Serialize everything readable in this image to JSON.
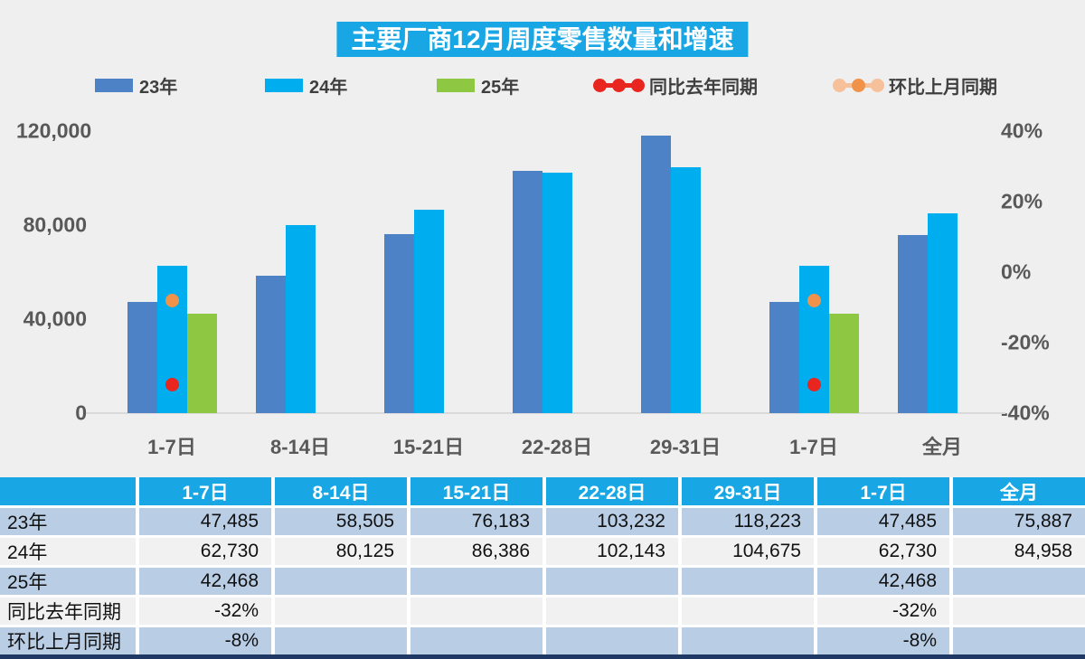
{
  "title": "主要厂商12月周度零售数量和增速",
  "colors": {
    "header_blue": "#18A7E4",
    "bar_23": "#4E82C6",
    "bar_24": "#00AEEF",
    "bar_25": "#8EC842",
    "yoy_red": "#E8251F",
    "mom_orange": "#F0924A",
    "mom_orange_light": "#F5C09A",
    "row_blue": "#B9CDE5",
    "row_white": "#F2F1F1",
    "navy_border": "#1F3864",
    "axis_text": "#595959",
    "baseline": "#D9D9D9"
  },
  "legend": {
    "items": [
      {
        "label": "23年",
        "marker": "swatch",
        "color": "#4E82C6"
      },
      {
        "label": "24年",
        "marker": "swatch",
        "color": "#00AEEF"
      },
      {
        "label": "25年",
        "marker": "swatch",
        "color": "#8EC842"
      },
      {
        "label": "同比去年同期",
        "marker": "dots",
        "color": "#E8251F",
        "light": "#E8251F"
      },
      {
        "label": "环比上月同期",
        "marker": "dots",
        "color": "#F0924A",
        "light": "#F5C09A"
      }
    ]
  },
  "chart_data": {
    "type": "bar",
    "title": "主要厂商12月周度零售数量和增速",
    "categories": [
      "1-7日",
      "8-14日",
      "15-21日",
      "22-28日",
      "29-31日",
      "1-7日",
      "全月"
    ],
    "series": [
      {
        "name": "23年",
        "role": "bar",
        "color": "#4E82C6",
        "values": [
          47485,
          58505,
          76183,
          103232,
          118223,
          47485,
          75887
        ]
      },
      {
        "name": "24年",
        "role": "bar",
        "color": "#00AEEF",
        "values": [
          62730,
          80125,
          86386,
          102143,
          104675,
          62730,
          84958
        ]
      },
      {
        "name": "25年",
        "role": "bar",
        "color": "#8EC842",
        "values": [
          42468,
          null,
          null,
          null,
          null,
          42468,
          null
        ]
      },
      {
        "name": "同比去年同期",
        "role": "point",
        "axis": "right",
        "color": "#E8251F",
        "values": [
          -32,
          null,
          null,
          null,
          null,
          -32,
          null
        ]
      },
      {
        "name": "环比上月同期",
        "role": "point",
        "axis": "right",
        "color": "#F0924A",
        "values": [
          -8,
          null,
          null,
          null,
          null,
          -8,
          null
        ]
      }
    ],
    "left_axis": {
      "ticks": [
        {
          "label": "120,000",
          "value": 120000
        },
        {
          "label": "80,000",
          "value": 80000
        },
        {
          "label": "40,000",
          "value": 40000
        },
        {
          "label": "0",
          "value": 0
        }
      ],
      "min": 0,
      "max": 120000
    },
    "right_axis": {
      "ticks": [
        {
          "label": "40%",
          "value": 40
        },
        {
          "label": "20%",
          "value": 20
        },
        {
          "label": "0%",
          "value": 0
        },
        {
          "label": "-20%",
          "value": -20
        },
        {
          "label": "-40%",
          "value": -40
        }
      ],
      "min": -40,
      "max": 40
    },
    "grid": "off",
    "legend_position": "top"
  },
  "table": {
    "header": [
      "",
      "1-7日",
      "8-14日",
      "15-21日",
      "22-28日",
      "29-31日",
      "1-7日",
      "全月"
    ],
    "rows": [
      {
        "label": "23年",
        "values": [
          "47,485",
          "58,505",
          "76,183",
          "103,232",
          "118,223",
          "47,485",
          "75,887"
        ]
      },
      {
        "label": "24年",
        "values": [
          "62,730",
          "80,125",
          "86,386",
          "102,143",
          "104,675",
          "62,730",
          "84,958"
        ]
      },
      {
        "label": "25年",
        "values": [
          "42,468",
          "",
          "",
          "",
          "",
          "42,468",
          ""
        ]
      },
      {
        "label": "同比去年同期",
        "values": [
          "-32%",
          "",
          "",
          "",
          "",
          "-32%",
          ""
        ]
      },
      {
        "label": "环比上月同期",
        "values": [
          "-8%",
          "",
          "",
          "",
          "",
          "-8%",
          ""
        ]
      }
    ]
  }
}
